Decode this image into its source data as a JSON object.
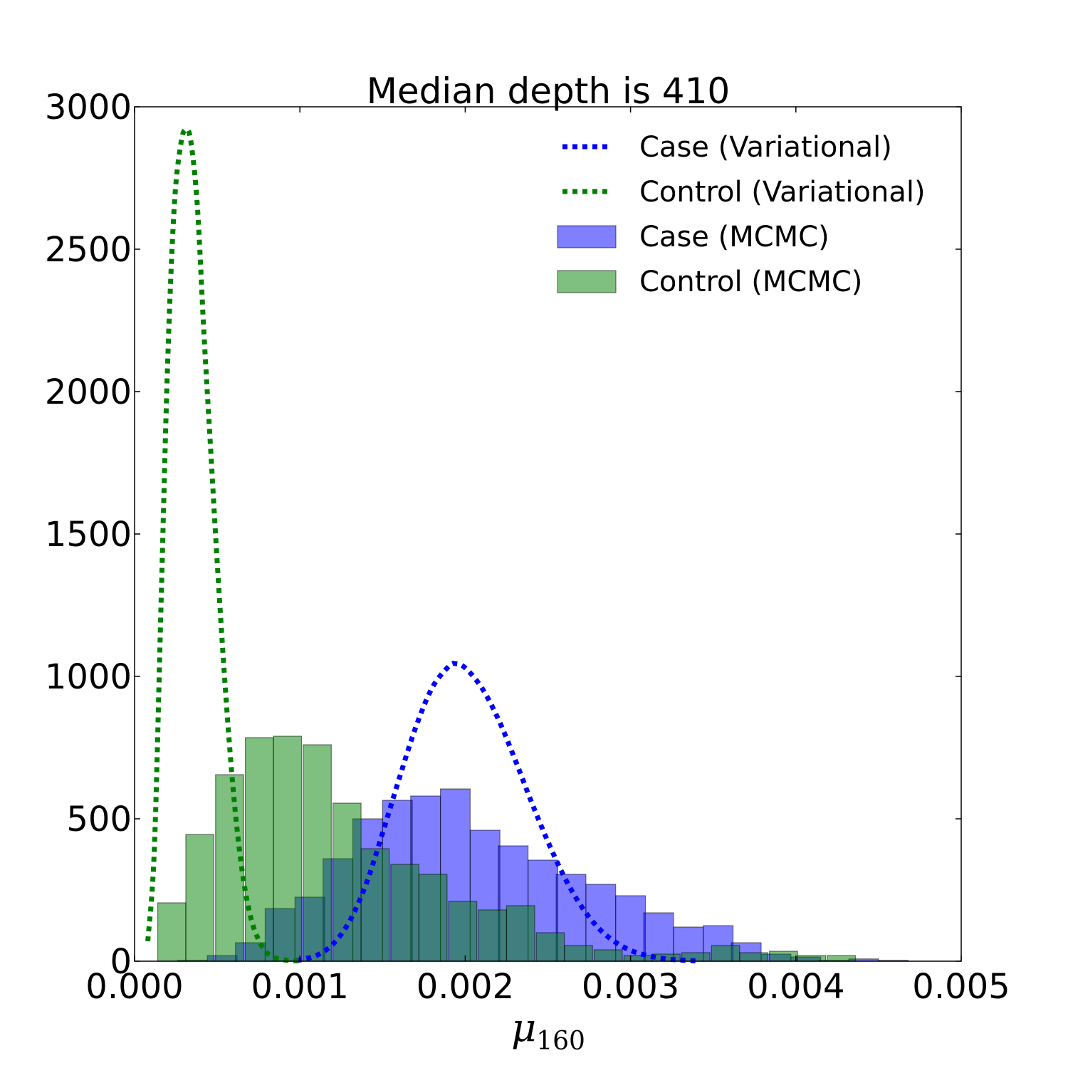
{
  "chart_data": {
    "type": "bar",
    "title": "Median depth is 410",
    "xlabel": "μ",
    "xlabel_subscript": "160",
    "ylabel": "",
    "xlim": [
      0.0,
      0.005
    ],
    "ylim": [
      0,
      3000
    ],
    "x_ticks": [
      "0.000",
      "0.001",
      "0.002",
      "0.003",
      "0.004",
      "0.005"
    ],
    "y_ticks": [
      "0",
      "500",
      "1000",
      "1500",
      "2000",
      "2500",
      "3000"
    ],
    "x_tick_values": [
      0.0,
      0.001,
      0.002,
      0.003,
      0.004,
      0.005
    ],
    "y_tick_values": [
      0,
      500,
      1000,
      1500,
      2000,
      2500,
      3000
    ],
    "grid": false,
    "legend_position": "top-right",
    "series": [
      {
        "name": "Case (Variational)",
        "kind": "line",
        "style": "dotted",
        "color": "#0000ff",
        "x": [
          0.00098,
          0.0011,
          0.0012,
          0.0013,
          0.0014,
          0.0015,
          0.0016,
          0.0017,
          0.0018,
          0.0019,
          0.00194,
          0.002,
          0.0021,
          0.0022,
          0.0023,
          0.0024,
          0.0025,
          0.0026,
          0.0027,
          0.0028,
          0.0029,
          0.003,
          0.0031,
          0.0032,
          0.0033,
          0.0034
        ],
        "y": [
          2,
          20,
          60,
          140,
          270,
          450,
          640,
          820,
          960,
          1035,
          1045,
          1030,
          960,
          850,
          710,
          560,
          420,
          295,
          195,
          120,
          70,
          38,
          20,
          9,
          4,
          1
        ]
      },
      {
        "name": "Control (Variational)",
        "kind": "line",
        "style": "dotted",
        "color": "#008000",
        "x": [
          8e-05,
          0.00012,
          0.00016,
          0.0002,
          0.00024,
          0.00028,
          0.00031,
          0.00034,
          0.00038,
          0.00042,
          0.00046,
          0.0005,
          0.00055,
          0.0006,
          0.00065,
          0.0007,
          0.00075,
          0.0008,
          0.00085,
          0.0009,
          0.00095,
          0.001
        ],
        "y": [
          70,
          400,
          1250,
          2100,
          2650,
          2870,
          2920,
          2880,
          2650,
          2200,
          1800,
          1400,
          950,
          580,
          320,
          160,
          75,
          30,
          12,
          5,
          2,
          1
        ]
      },
      {
        "name": "Case (MCMC)",
        "kind": "histogram",
        "color": "#7f7fff",
        "bins": [
          0.00026,
          0.00044,
          0.00061,
          0.00079,
          0.00097,
          0.00114,
          0.00132,
          0.0015,
          0.00167,
          0.00185,
          0.00203,
          0.0022,
          0.00238,
          0.00255,
          0.00273,
          0.00291,
          0.00308,
          0.00326,
          0.00344,
          0.00361,
          0.00379,
          0.00397,
          0.00414,
          0.00432,
          0.0045,
          0.00467
        ],
        "values": [
          3,
          20,
          65,
          185,
          225,
          360,
          500,
          565,
          580,
          605,
          460,
          405,
          355,
          305,
          270,
          230,
          170,
          120,
          125,
          65,
          25,
          15,
          3,
          8,
          3
        ]
      },
      {
        "name": "Control (MCMC)",
        "kind": "histogram",
        "color": "#7fbf7f",
        "bins": [
          0.00014,
          0.00031,
          0.00049,
          0.00067,
          0.00084,
          0.00102,
          0.0012,
          0.00137,
          0.00155,
          0.00172,
          0.0019,
          0.00208,
          0.00225,
          0.00243,
          0.0026,
          0.00278,
          0.00296,
          0.00313,
          0.00331,
          0.00349,
          0.00366,
          0.00384,
          0.00401,
          0.00419
        ],
        "values": [
          205,
          445,
          655,
          785,
          790,
          760,
          555,
          395,
          340,
          305,
          210,
          180,
          195,
          100,
          55,
          40,
          20,
          25,
          30,
          55,
          30,
          35,
          20,
          20
        ]
      }
    ]
  }
}
